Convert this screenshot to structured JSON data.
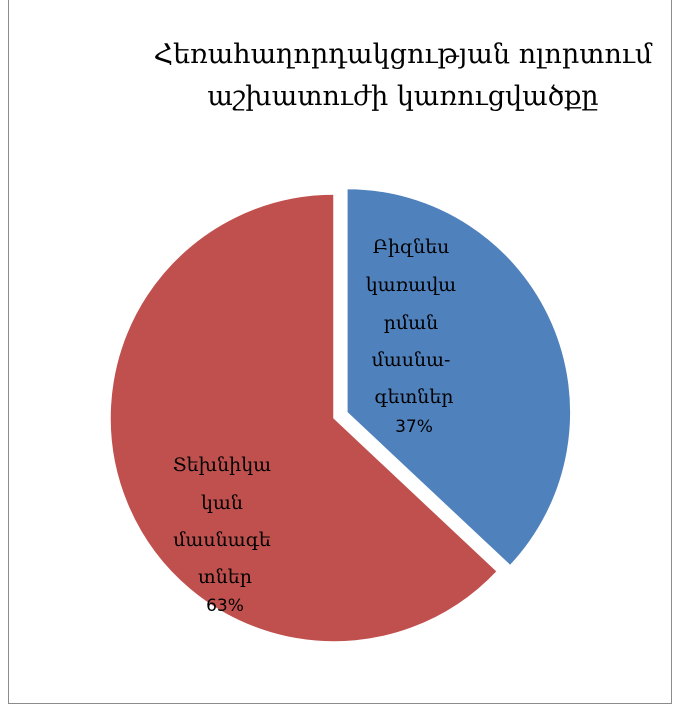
{
  "chart_data": {
    "type": "pie",
    "title_lines": [
      "Հեռահաղորդակցության ոլորտում",
      "աշխատուժի կառուցվածքը"
    ],
    "slices": [
      {
        "label_lines": [
          "Բիզնես",
          "կառավա",
          "րման",
          "մասնա-",
          "գետներ"
        ],
        "percent_label": "37%",
        "value": 37,
        "color": "#4f81bd"
      },
      {
        "label_lines": [
          "Տեխնիկա",
          "կան",
          "մասնագե",
          "տներ"
        ],
        "percent_label": "63%",
        "value": 63,
        "color": "#c0504d"
      }
    ]
  }
}
